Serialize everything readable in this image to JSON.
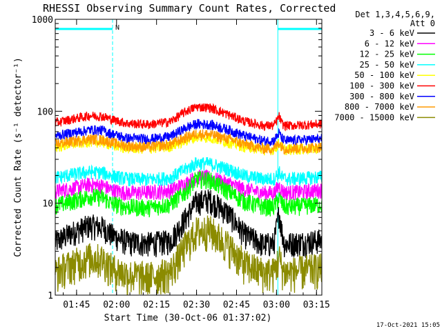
{
  "chart_data": {
    "type": "line",
    "title": "RHESSI Observing Summary Count Rates, Corrected",
    "xlabel": "Start Time (30-Oct-06 01:37:02)",
    "ylabel": "Corrected Count Rate (s⁻¹ detector⁻¹)",
    "yscale": "log",
    "ylim": [
      1,
      1000
    ],
    "xlim_minutes": [
      97,
      197
    ],
    "x_ticks": [
      {
        "label": "01:45",
        "t": 105
      },
      {
        "label": "02:00",
        "t": 120
      },
      {
        "label": "02:15",
        "t": 135
      },
      {
        "label": "02:30",
        "t": 150
      },
      {
        "label": "02:45",
        "t": 165
      },
      {
        "label": "03:00",
        "t": 180
      },
      {
        "label": "03:15",
        "t": 195
      }
    ],
    "y_ticks": [
      {
        "label": "1",
        "v": 1
      },
      {
        "label": "10",
        "v": 10
      },
      {
        "label": "100",
        "v": 100
      },
      {
        "label": "1000",
        "v": 1000
      }
    ],
    "grid": false,
    "legend_position": "right",
    "legend_header": [
      "Det 1,3,4,5,6,9,",
      "Att 0"
    ],
    "series": [
      {
        "name": "3 - 6 keV",
        "color": "#000000",
        "t": [
          97,
          103,
          110,
          115,
          118,
          124,
          132,
          140,
          146,
          150,
          155,
          162,
          168,
          175,
          179,
          181,
          182,
          183,
          185,
          190,
          197
        ],
        "y": [
          3.8,
          4.8,
          5.8,
          5.5,
          4.6,
          3.8,
          3.7,
          3.9,
          7.0,
          10.5,
          11.0,
          7.8,
          4.6,
          3.6,
          3.7,
          8.0,
          5.0,
          3.6,
          3.7,
          3.8,
          4.0
        ]
      },
      {
        "name": "6 - 12 keV",
        "color": "#ff00ff",
        "t": [
          97,
          103,
          110,
          115,
          118,
          124,
          132,
          140,
          146,
          150,
          155,
          162,
          168,
          175,
          179,
          181,
          182,
          183,
          185,
          190,
          197
        ],
        "y": [
          13.5,
          14.5,
          16.0,
          15.5,
          14.0,
          13.0,
          13.2,
          13.8,
          16.5,
          19.5,
          19.0,
          16.5,
          14.2,
          13.0,
          13.0,
          15.5,
          14.0,
          13.2,
          13.2,
          13.4,
          14.0
        ]
      },
      {
        "name": "12 - 25 keV",
        "color": "#00ff00",
        "t": [
          97,
          103,
          110,
          115,
          118,
          124,
          132,
          140,
          146,
          150,
          155,
          162,
          168,
          175,
          179,
          181,
          182,
          183,
          185,
          190,
          197
        ],
        "y": [
          9.5,
          10.5,
          12.0,
          11.5,
          10.0,
          9.2,
          9.0,
          9.8,
          13.5,
          18.5,
          18.0,
          13.5,
          10.5,
          9.2,
          9.2,
          11.5,
          10.0,
          9.2,
          9.2,
          9.4,
          9.8
        ]
      },
      {
        "name": "25 - 50 keV",
        "color": "#00ffff",
        "t": [
          97,
          103,
          110,
          115,
          118,
          124,
          132,
          140,
          146,
          150,
          155,
          162,
          168,
          175,
          179,
          181,
          182,
          183,
          185,
          190,
          197
        ],
        "y": [
          19.0,
          20.5,
          22.0,
          21.5,
          20.0,
          18.5,
          18.2,
          19.0,
          23.5,
          27.5,
          27.0,
          23.5,
          20.0,
          18.5,
          18.5,
          22.0,
          19.5,
          18.5,
          18.5,
          18.8,
          19.5
        ]
      },
      {
        "name": "50 - 100 keV",
        "color": "#ffff00",
        "t": [
          97,
          103,
          110,
          115,
          118,
          124,
          132,
          140,
          146,
          150,
          155,
          162,
          168,
          175,
          179,
          181,
          182,
          183,
          185,
          190,
          197
        ],
        "y": [
          41.0,
          44.0,
          47.0,
          46.0,
          43.0,
          40.0,
          39.5,
          41.5,
          48.0,
          53.0,
          52.0,
          46.0,
          41.5,
          38.5,
          38.5,
          45.0,
          40.5,
          38.5,
          38.5,
          39.0,
          40.0
        ]
      },
      {
        "name": "100 - 300 keV",
        "color": "#ff0000",
        "t": [
          97,
          103,
          110,
          115,
          118,
          124,
          132,
          140,
          146,
          150,
          155,
          162,
          168,
          175,
          179,
          181,
          182,
          183,
          185,
          190,
          197
        ],
        "y": [
          75,
          82,
          90,
          88,
          82,
          74,
          72,
          77,
          100,
          112,
          110,
          92,
          78,
          70,
          70,
          88,
          74,
          70,
          70,
          71,
          73
        ]
      },
      {
        "name": "300 - 800 keV",
        "color": "#0000ff",
        "t": [
          97,
          103,
          110,
          115,
          118,
          124,
          132,
          140,
          146,
          150,
          155,
          162,
          168,
          175,
          179,
          181,
          182,
          183,
          185,
          190,
          197
        ],
        "y": [
          54,
          58,
          63,
          62,
          57,
          51,
          50,
          53,
          66,
          73,
          72,
          63,
          54,
          48,
          48,
          58,
          51,
          48,
          48,
          49,
          50
        ]
      },
      {
        "name": "800 - 7000 keV",
        "color": "#ff9900",
        "t": [
          97,
          103,
          110,
          115,
          118,
          124,
          132,
          140,
          146,
          150,
          155,
          162,
          168,
          175,
          179,
          181,
          182,
          183,
          185,
          190,
          197
        ],
        "y": [
          44,
          47,
          50,
          49,
          46,
          42,
          41,
          43.5,
          52,
          57,
          56,
          50,
          44,
          39.5,
          39.5,
          46,
          41.5,
          39.5,
          39.5,
          40,
          41
        ]
      },
      {
        "name": "7000 - 15000 keV",
        "color": "#8b8b00",
        "t": [
          97,
          103,
          110,
          115,
          118,
          124,
          132,
          140,
          146,
          150,
          155,
          162,
          168,
          175,
          179,
          181,
          182,
          183,
          185,
          190,
          197
        ],
        "y": [
          1.8,
          2.2,
          2.6,
          2.5,
          2.0,
          1.7,
          1.6,
          1.8,
          3.5,
          5.0,
          5.2,
          3.5,
          2.2,
          1.8,
          1.8,
          2.6,
          2.0,
          1.8,
          1.8,
          1.9,
          2.0
        ]
      }
    ],
    "annotations": [
      {
        "text": "N",
        "t": 118.5,
        "v": 800,
        "color": "#00ffff"
      },
      {
        "text": "17-Oct-2021 15:05",
        "position": "bottom-right"
      }
    ],
    "markers": {
      "night_intervals_minutes": [
        [
          97,
          118.5
        ],
        [
          180.5,
          197
        ]
      ],
      "color": "#00ffff"
    }
  }
}
